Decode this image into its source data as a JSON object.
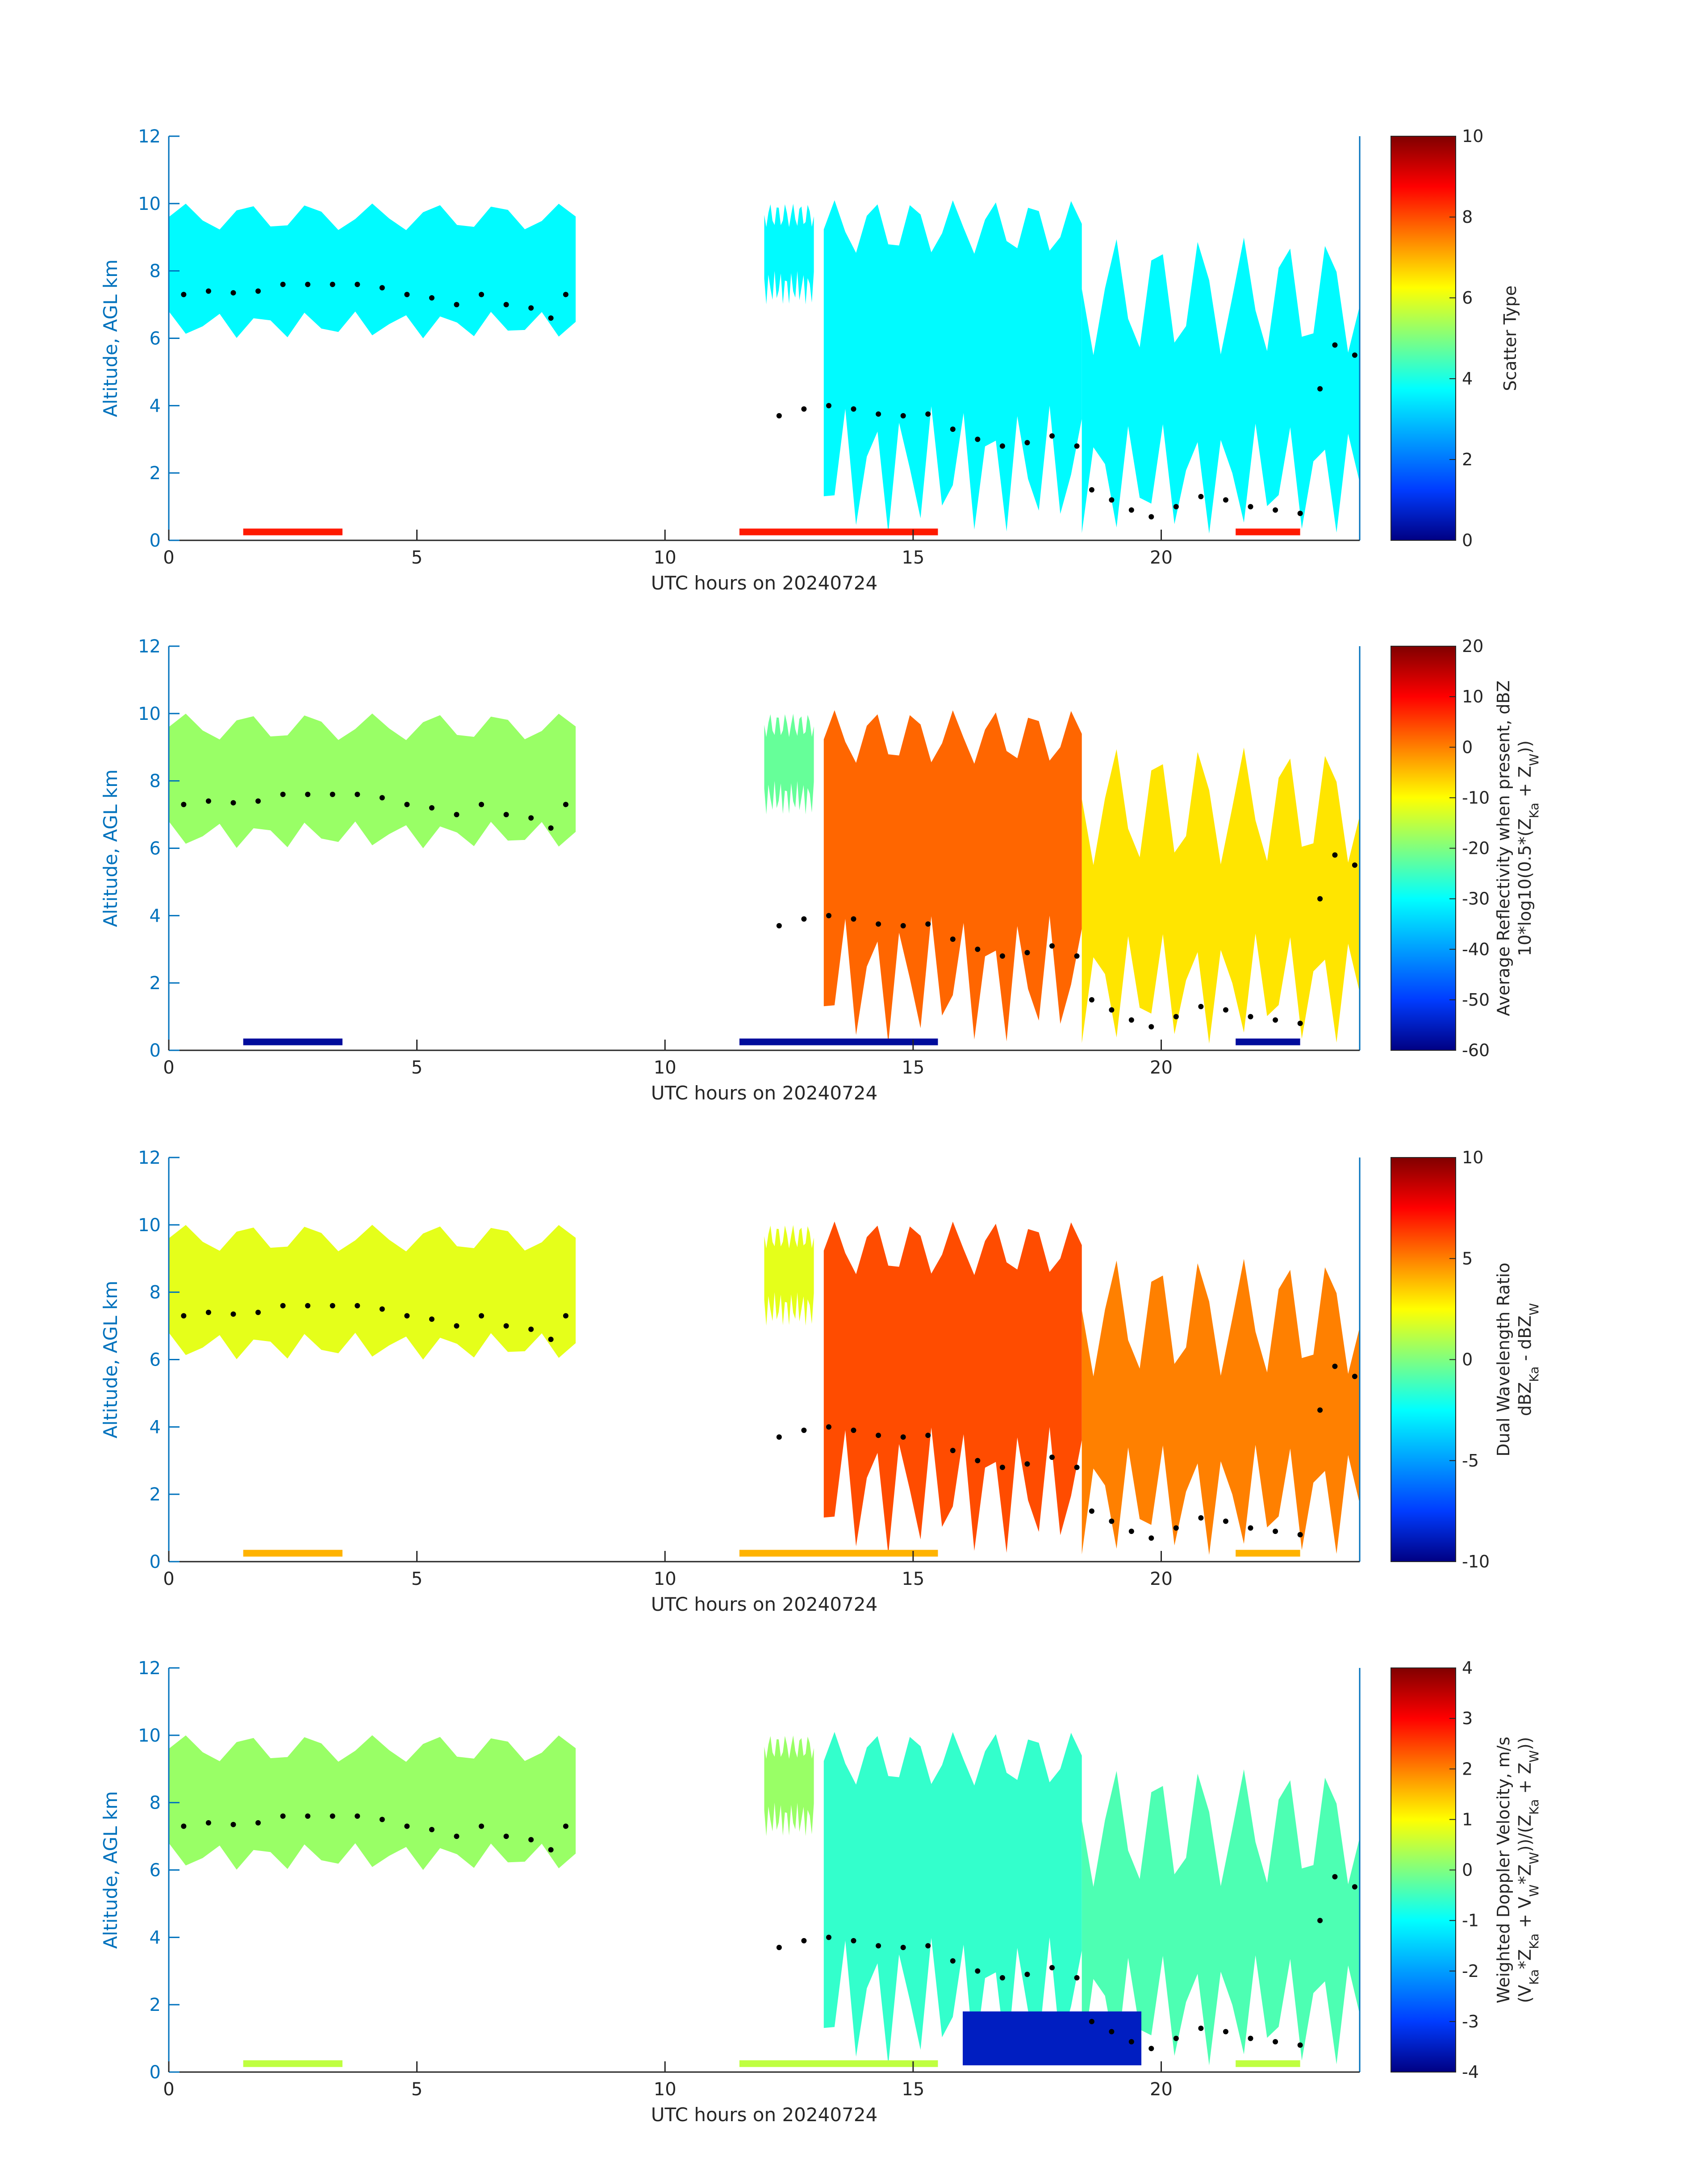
{
  "chart_data": [
    {
      "type": "heatmap",
      "panel": "scatter-type",
      "title": "",
      "xlabel": "UTC hours on 20240724",
      "ylabel": "Altitude, AGL km",
      "xlim": [
        0,
        24
      ],
      "ylim": [
        0,
        12
      ],
      "x_ticks": [
        "0",
        "5",
        "10",
        "15",
        "20"
      ],
      "y_ticks": [
        "0",
        "2",
        "4",
        "6",
        "8",
        "10",
        "12"
      ],
      "colorbar": {
        "label_lines": [
          "Scatter Type"
        ],
        "range": [
          0,
          10
        ],
        "ticks": [
          "0",
          "2",
          "4",
          "6",
          "8",
          "10"
        ]
      },
      "dominant_value": 3.7,
      "cloud_regions": [
        {
          "hours": [
            0,
            8.2
          ],
          "base_km": [
            6.0,
            6.8
          ],
          "top_km": [
            9.2,
            10.0
          ],
          "value": 3.7
        },
        {
          "hours": [
            12.0,
            13.0
          ],
          "base_km": [
            7.0,
            8.0
          ],
          "top_km": [
            9.3,
            10.0
          ],
          "value": 3.7
        },
        {
          "hours": [
            13.2,
            18.4
          ],
          "base_km": [
            0.2,
            4.0
          ],
          "top_km": [
            8.5,
            10.1
          ],
          "value": 3.7
        },
        {
          "hours": [
            18.4,
            24.0
          ],
          "base_km": [
            0.2,
            3.5
          ],
          "top_km": [
            5.5,
            9.0
          ],
          "value": 3.7
        }
      ],
      "surface_echo": [
        {
          "hours": [
            1.5,
            3.5
          ],
          "value": 8.5
        },
        {
          "hours": [
            11.5,
            15.5
          ],
          "value": 8.5
        },
        {
          "hours": [
            21.5,
            22.8
          ],
          "value": 8.5
        }
      ],
      "markers": {
        "name": "cloud-layer-points",
        "points": [
          [
            0.3,
            7.3
          ],
          [
            0.8,
            7.4
          ],
          [
            1.3,
            7.35
          ],
          [
            1.8,
            7.4
          ],
          [
            2.3,
            7.6
          ],
          [
            2.8,
            7.6
          ],
          [
            3.3,
            7.6
          ],
          [
            3.8,
            7.6
          ],
          [
            4.3,
            7.5
          ],
          [
            4.8,
            7.3
          ],
          [
            5.3,
            7.2
          ],
          [
            5.8,
            7.0
          ],
          [
            6.3,
            7.3
          ],
          [
            6.8,
            7.0
          ],
          [
            7.3,
            6.9
          ],
          [
            7.7,
            6.6
          ],
          [
            8.0,
            7.3
          ],
          [
            12.3,
            3.7
          ],
          [
            12.8,
            3.9
          ],
          [
            13.3,
            4.0
          ],
          [
            13.8,
            3.9
          ],
          [
            14.3,
            3.75
          ],
          [
            14.8,
            3.7
          ],
          [
            15.3,
            3.75
          ],
          [
            15.8,
            3.3
          ],
          [
            16.3,
            3.0
          ],
          [
            16.8,
            2.8
          ],
          [
            17.3,
            2.9
          ],
          [
            17.8,
            3.1
          ],
          [
            18.3,
            2.8
          ],
          [
            18.6,
            1.5
          ],
          [
            19.0,
            1.2
          ],
          [
            19.4,
            0.9
          ],
          [
            19.8,
            0.7
          ],
          [
            20.3,
            1.0
          ],
          [
            20.8,
            1.3
          ],
          [
            21.3,
            1.2
          ],
          [
            21.8,
            1.0
          ],
          [
            22.3,
            0.9
          ],
          [
            22.8,
            0.8
          ],
          [
            23.2,
            4.5
          ],
          [
            23.5,
            5.8
          ],
          [
            23.9,
            5.5
          ]
        ]
      }
    },
    {
      "type": "heatmap",
      "panel": "average-reflectivity",
      "title": "",
      "xlabel": "UTC hours on 20240724",
      "ylabel": "Altitude, AGL km",
      "xlim": [
        0,
        24
      ],
      "ylim": [
        0,
        12
      ],
      "x_ticks": [
        "0",
        "5",
        "10",
        "15",
        "20"
      ],
      "y_ticks": [
        "0",
        "2",
        "4",
        "6",
        "8",
        "10",
        "12"
      ],
      "colorbar": {
        "label_lines": [
          "Average Reflectivity when present, dBZ",
          "10*log10(0.5*(Z_Ka + Z_W))"
        ],
        "range": [
          -60,
          20
        ],
        "ticks": [
          "-60",
          "-50",
          "-40",
          "-30",
          "-20",
          "-10",
          "0",
          "10",
          "20"
        ]
      },
      "cloud_regions": [
        {
          "hours": [
            0,
            8.2
          ],
          "base_km": [
            6.0,
            6.8
          ],
          "top_km": [
            9.2,
            10.0
          ],
          "value": -18
        },
        {
          "hours": [
            12.0,
            13.0
          ],
          "base_km": [
            7.0,
            8.0
          ],
          "top_km": [
            9.3,
            10.0
          ],
          "value": -22
        },
        {
          "hours": [
            13.2,
            18.4
          ],
          "base_km": [
            0.2,
            4.0
          ],
          "top_km": [
            8.5,
            10.1
          ],
          "value": 2
        },
        {
          "hours": [
            18.4,
            24.0
          ],
          "base_km": [
            0.2,
            3.5
          ],
          "top_km": [
            5.5,
            9.0
          ],
          "value": -8
        }
      ],
      "surface_echo": [
        {
          "hours": [
            1.5,
            3.5
          ],
          "value": -58
        },
        {
          "hours": [
            11.5,
            15.5
          ],
          "value": -58
        },
        {
          "hours": [
            21.5,
            22.8
          ],
          "value": -58
        }
      ],
      "markers": {
        "name": "cloud-layer-points",
        "same_as_panel": 1
      }
    },
    {
      "type": "heatmap",
      "panel": "dual-wavelength-ratio",
      "title": "",
      "xlabel": "UTC hours on 20240724",
      "ylabel": "Altitude, AGL km",
      "xlim": [
        0,
        24
      ],
      "ylim": [
        0,
        12
      ],
      "x_ticks": [
        "0",
        "5",
        "10",
        "15",
        "20"
      ],
      "y_ticks": [
        "0",
        "2",
        "4",
        "6",
        "8",
        "10",
        "12"
      ],
      "colorbar": {
        "label_lines": [
          "Dual Wavelength Ratio",
          "dBZ_Ka - dBZ_W"
        ],
        "range": [
          -10,
          10
        ],
        "ticks": [
          "-10",
          "-5",
          "0",
          "5",
          "10"
        ]
      },
      "cloud_regions": [
        {
          "hours": [
            0,
            8.2
          ],
          "base_km": [
            6.0,
            6.8
          ],
          "top_km": [
            9.2,
            10.0
          ],
          "value": 2
        },
        {
          "hours": [
            12.0,
            13.0
          ],
          "base_km": [
            7.0,
            8.0
          ],
          "top_km": [
            9.3,
            10.0
          ],
          "value": 2
        },
        {
          "hours": [
            13.2,
            18.4
          ],
          "base_km": [
            0.2,
            4.0
          ],
          "top_km": [
            8.5,
            10.1
          ],
          "value": 6
        },
        {
          "hours": [
            18.4,
            24.0
          ],
          "base_km": [
            0.2,
            3.5
          ],
          "top_km": [
            5.5,
            9.0
          ],
          "value": 5
        }
      ],
      "surface_echo": [
        {
          "hours": [
            1.5,
            3.5
          ],
          "value": 4
        },
        {
          "hours": [
            11.5,
            15.5
          ],
          "value": 4
        },
        {
          "hours": [
            21.5,
            22.8
          ],
          "value": 4
        }
      ],
      "markers": {
        "name": "cloud-layer-points",
        "same_as_panel": 1
      }
    },
    {
      "type": "heatmap",
      "panel": "weighted-doppler-velocity",
      "title": "",
      "xlabel": "UTC hours on 20240724",
      "ylabel": "Altitude, AGL km",
      "xlim": [
        0,
        24
      ],
      "ylim": [
        0,
        12
      ],
      "x_ticks": [
        "0",
        "5",
        "10",
        "15",
        "20"
      ],
      "y_ticks": [
        "0",
        "2",
        "4",
        "6",
        "8",
        "10",
        "12"
      ],
      "colorbar": {
        "label_lines": [
          "Weighted Doppler Velocity, m/s",
          "(V_Ka*Z_Ka + V_W*Z_W))/(Z_Ka + Z_W))"
        ],
        "range": [
          -4,
          4
        ],
        "ticks": [
          "-4",
          "-3",
          "-2",
          "-1",
          "0",
          "1",
          "2",
          "3",
          "4"
        ]
      },
      "cloud_regions": [
        {
          "hours": [
            0,
            8.2
          ],
          "base_km": [
            6.0,
            6.8
          ],
          "top_km": [
            9.2,
            10.0
          ],
          "value": 0.2
        },
        {
          "hours": [
            12.0,
            13.0
          ],
          "base_km": [
            7.0,
            8.0
          ],
          "top_km": [
            9.3,
            10.0
          ],
          "value": 0.2
        },
        {
          "hours": [
            13.2,
            18.4
          ],
          "base_km": [
            0.2,
            4.0
          ],
          "top_km": [
            8.5,
            10.1
          ],
          "value": -0.6
        },
        {
          "hours": [
            18.4,
            24.0
          ],
          "base_km": [
            0.2,
            3.5
          ],
          "top_km": [
            5.5,
            9.0
          ],
          "value": -0.4
        }
      ],
      "precip_region": {
        "hours": [
          16.0,
          19.6
        ],
        "alt_km": [
          0.2,
          1.8
        ],
        "value": -3.5
      },
      "surface_echo": [
        {
          "hours": [
            1.5,
            3.5
          ],
          "value": 0.5
        },
        {
          "hours": [
            11.5,
            15.5
          ],
          "value": 0.5
        },
        {
          "hours": [
            21.5,
            22.8
          ],
          "value": 0.5
        }
      ],
      "markers": {
        "name": "cloud-layer-points",
        "same_as_panel": 1
      }
    }
  ]
}
